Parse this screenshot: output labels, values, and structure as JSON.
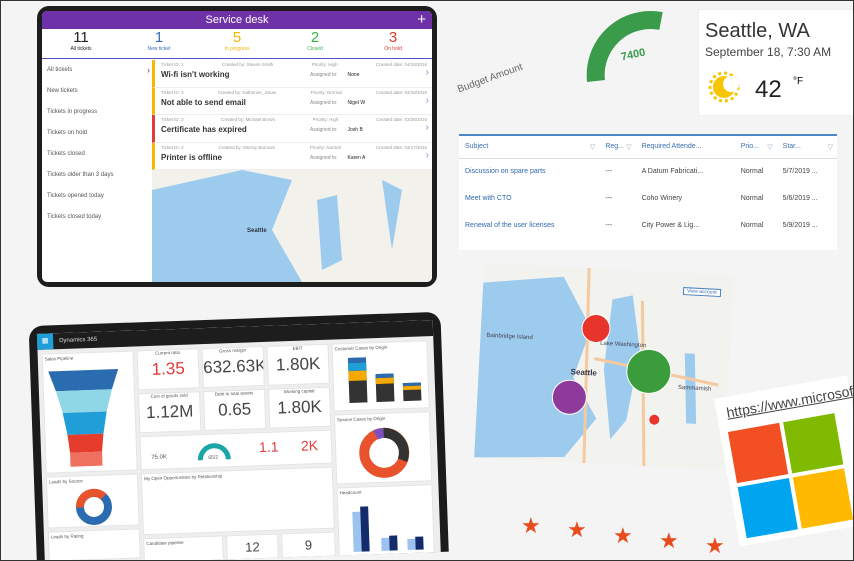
{
  "tablet": {
    "title": "Service desk",
    "add_icon": "plus-icon",
    "stats": [
      {
        "value": "11",
        "label": "All tickets",
        "color": "#222222"
      },
      {
        "value": "1",
        "label": "New ticket",
        "color": "#3b6fc0"
      },
      {
        "value": "5",
        "label": "In progress",
        "color": "#f2b600"
      },
      {
        "value": "2",
        "label": "Closed",
        "color": "#3bb54a"
      },
      {
        "value": "3",
        "label": "On hold",
        "color": "#e13b2d"
      }
    ],
    "nav": [
      "All tickets",
      "New tickets",
      "Tickets in progress",
      "Tickets on hold",
      "Tickets closed",
      "Tickets older than 3 days",
      "Tickets opened today",
      "Tickets closed today"
    ],
    "tickets": [
      {
        "id": "Ticket ID: 1",
        "created_by": "Created by: Steven Smith",
        "priority": "Priority: High",
        "date": "Created date: 04/18/2016",
        "title": "Wi-fi isn't working",
        "assigned_label": "Assigned to:",
        "assigned": "None",
        "color": "#f5b800"
      },
      {
        "id": "Ticket ID: 2",
        "created_by": "Created by: Katherine_Jonas",
        "priority": "Priority: Normal",
        "date": "Created date: 04/18/2016",
        "title": "Not able to send email",
        "assigned_label": "Assigned to:",
        "assigned": "Nigel W",
        "color": "#f5b800"
      },
      {
        "id": "Ticket ID: 3",
        "created_by": "Created by: Michael Brown",
        "priority": "Priority: High",
        "date": "Created date: 03/28/2016",
        "title": "Certificate has expired",
        "assigned_label": "Assigned to:",
        "assigned": "Josh B",
        "color": "#e33b3b"
      },
      {
        "id": "Ticket ID: 4",
        "created_by": "Created by: Murray Burrows",
        "priority": "Priority: Normal",
        "date": "Created date: 03/17/2016",
        "title": "Printer is offline",
        "assigned_label": "Assigned to:",
        "assigned": "Karen A",
        "color": "#f5b800"
      }
    ],
    "map_label": "Seattle"
  },
  "gauge": {
    "value": "7400",
    "label": "Budget Amount",
    "color": "#3a9c4a"
  },
  "weather": {
    "city": "Seattle, WA",
    "datetime": "September 18, 7:30 AM",
    "temp": "42",
    "unit": "°F",
    "icon": "sun-cloud-icon"
  },
  "grid": {
    "columns": [
      "Subject",
      "Reg...",
      "Required Attende...",
      "Prio...",
      "Star..."
    ],
    "rows": [
      [
        "Discussion on spare parts",
        "---",
        "A Datum Fabricati...",
        "Normal",
        "5/7/2019 ..."
      ],
      [
        "Meet with CTO",
        "---",
        "Coho Winery",
        "Normal",
        "5/6/2019 ..."
      ],
      [
        "Renewal of the user licenses",
        "---",
        "City Power & Lig...",
        "Normal",
        "5/9/2019 ..."
      ]
    ]
  },
  "map": {
    "labels": [
      "Seattle",
      "Bainbridge Island",
      "Lake Washington",
      "Sammamish"
    ],
    "button": "View account"
  },
  "microsoft": {
    "url": "https://www.microsoft.c",
    "colors": [
      "#f25022",
      "#7fba00",
      "#00a4ef",
      "#ffb900"
    ]
  },
  "rating": {
    "stars": 5
  },
  "dashboard": {
    "app": "Dynamics 365",
    "tiles": {
      "sales_pipeline": "Sales Pipeline",
      "current_ratio": {
        "label": "Current ratio",
        "value": "1.35"
      },
      "gross_margin": {
        "label": "Gross margin",
        "value": "632.63K"
      },
      "ebit": {
        "label": "EBIT",
        "value": "1.80K"
      },
      "cogs": {
        "label": "Cost of goods sold",
        "value": "1.12M"
      },
      "debt": {
        "label": "Debt to total assets",
        "value": "0.65"
      },
      "working_capital": {
        "label": "Working capital",
        "value": "1.80K"
      },
      "customer_cases": "Customer Cases by Origin",
      "service_cases": "Service Cases by Origin",
      "leads_source": "Leads by Source",
      "leads_rating": "Leads by Rating",
      "opportunities": "My Open Opportunities by Relationship",
      "candidate": "Candidate pipeline",
      "headcount": "Headcount",
      "k1": "75.0K",
      "k2": "65/2",
      "k3": "1.1",
      "k4": "2K",
      "k5": "12",
      "k6": "9"
    }
  }
}
